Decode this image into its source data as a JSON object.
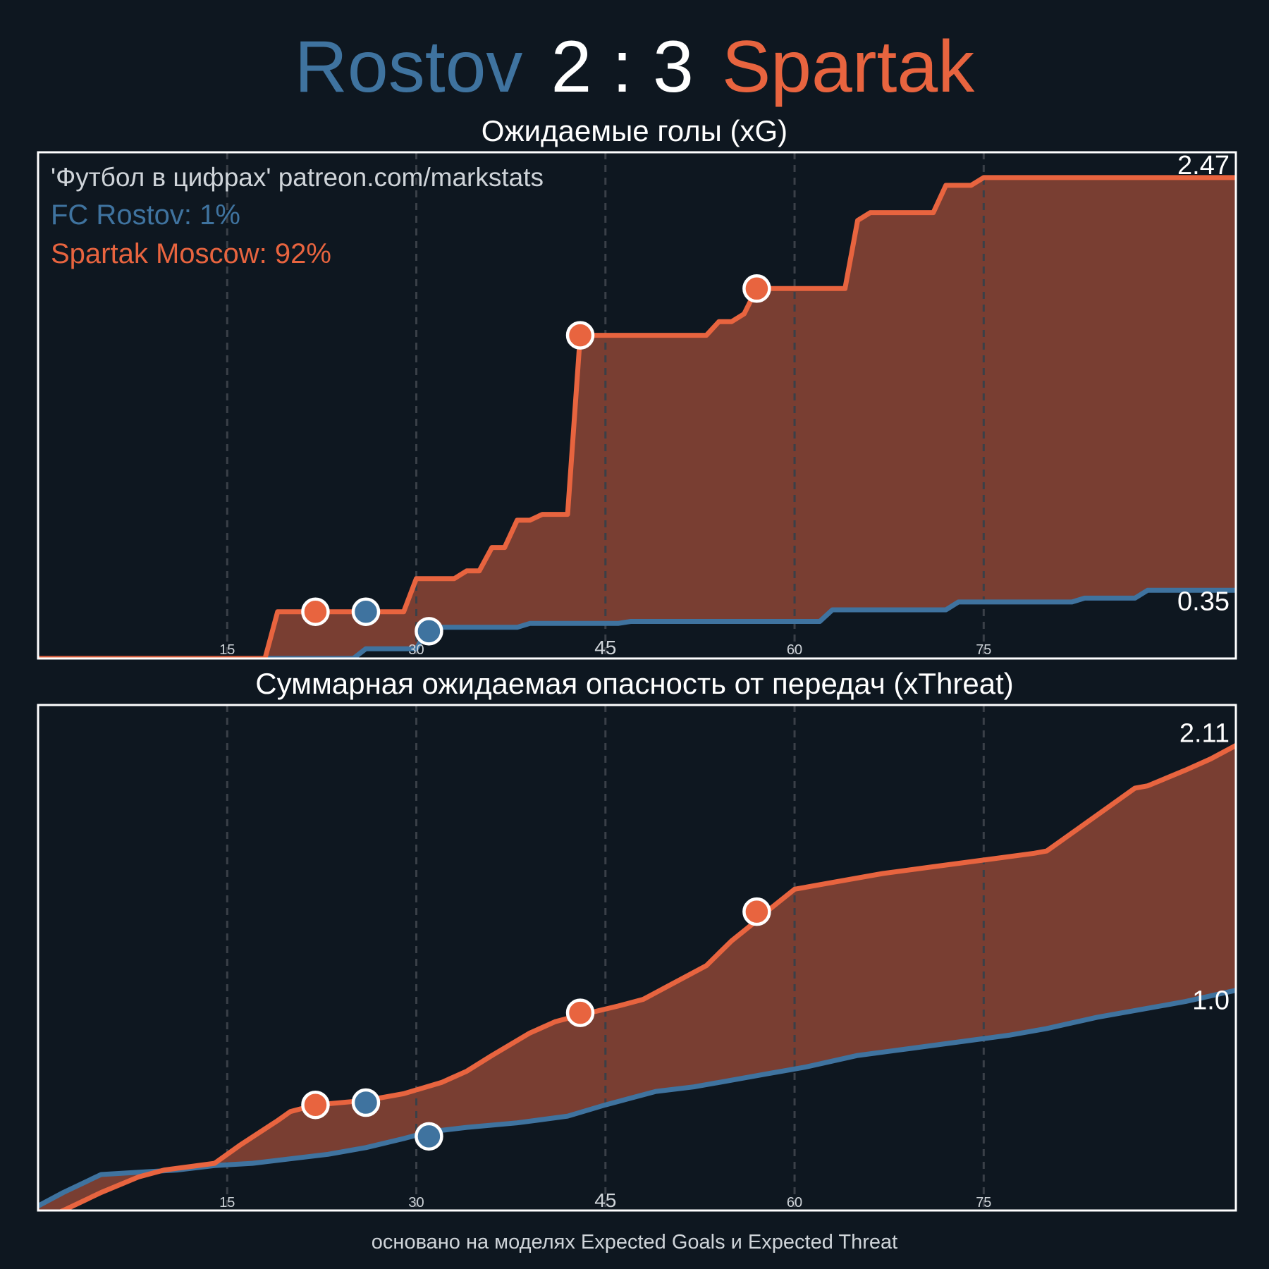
{
  "header": {
    "home": "Rostov",
    "score": "2 : 3",
    "away": "Spartak"
  },
  "footer": "основано на моделях Expected Goals и Expected Threat",
  "colors": {
    "home": "#3f739f",
    "away": "#e8643f",
    "fill": "#793e32",
    "background": "#0e1720",
    "grid": "#3a4048",
    "frame": "#ffffff"
  },
  "chart_data": [
    {
      "type": "line",
      "title": "Ожидаемые голы (xG)",
      "xlabel": "",
      "ylabel": "",
      "xlim": [
        0,
        95
      ],
      "ylim": [
        0,
        2.6
      ],
      "xticks": [
        15,
        30,
        45,
        60,
        75
      ],
      "grid": "vertical dashed at ticks",
      "annotations": [
        "'Футбол в цифрах' patreon.com/markstats",
        "FC Rostov: 1%",
        "Spartak Moscow: 92%"
      ],
      "end_labels": [
        "2.47",
        "0.35"
      ],
      "series": [
        {
          "name": "FC Rostov",
          "color": "#3f739f",
          "points": [
            [
              0,
              0
            ],
            [
              25,
              0
            ],
            [
              26,
              0.05
            ],
            [
              30,
              0.05
            ],
            [
              31,
              0.16
            ],
            [
              38,
              0.16
            ],
            [
              39,
              0.18
            ],
            [
              46,
              0.18
            ],
            [
              47,
              0.19
            ],
            [
              62,
              0.19
            ],
            [
              63,
              0.25
            ],
            [
              72,
              0.25
            ],
            [
              73,
              0.29
            ],
            [
              82,
              0.29
            ],
            [
              83,
              0.31
            ],
            [
              87,
              0.31
            ],
            [
              88,
              0.35
            ],
            [
              95,
              0.35
            ]
          ]
        },
        {
          "name": "Spartak Moscow",
          "color": "#e8643f",
          "points": [
            [
              0,
              0
            ],
            [
              18,
              0
            ],
            [
              19,
              0.24
            ],
            [
              29,
              0.24
            ],
            [
              30,
              0.41
            ],
            [
              33,
              0.41
            ],
            [
              34,
              0.45
            ],
            [
              35,
              0.45
            ],
            [
              36,
              0.57
            ],
            [
              37,
              0.57
            ],
            [
              38,
              0.71
            ],
            [
              39,
              0.71
            ],
            [
              40,
              0.74
            ],
            [
              42,
              0.74
            ],
            [
              43,
              1.66
            ],
            [
              53,
              1.66
            ],
            [
              54,
              1.73
            ],
            [
              55,
              1.73
            ],
            [
              56,
              1.77
            ],
            [
              57,
              1.9
            ],
            [
              64,
              1.9
            ],
            [
              65,
              2.25
            ],
            [
              66,
              2.29
            ],
            [
              71,
              2.29
            ],
            [
              72,
              2.43
            ],
            [
              74,
              2.43
            ],
            [
              75,
              2.47
            ],
            [
              95,
              2.47
            ]
          ]
        }
      ],
      "goal_markers": [
        {
          "team": "Spartak Moscow",
          "minute": 22,
          "value": 0.24
        },
        {
          "team": "FC Rostov",
          "minute": 26,
          "value": 0.24
        },
        {
          "team": "FC Rostov",
          "minute": 31,
          "value": 0.14
        },
        {
          "team": "Spartak Moscow",
          "minute": 43,
          "value": 1.66
        },
        {
          "team": "Spartak Moscow",
          "minute": 57,
          "value": 1.9
        }
      ]
    },
    {
      "type": "line",
      "title": "Суммарная ожидаемая опасность от передач (xThreat)",
      "xlabel": "",
      "ylabel": "",
      "xlim": [
        0,
        95
      ],
      "ylim": [
        0,
        2.25
      ],
      "xticks": [
        15,
        30,
        45,
        60,
        75
      ],
      "grid": "vertical dashed at ticks",
      "end_labels": [
        "2.11",
        "1.0"
      ],
      "series": [
        {
          "name": "FC Rostov",
          "color": "#3f739f",
          "points": [
            [
              0,
              0.02
            ],
            [
              2,
              0.08
            ],
            [
              5,
              0.16
            ],
            [
              8,
              0.17
            ],
            [
              11,
              0.18
            ],
            [
              14,
              0.2
            ],
            [
              17,
              0.21
            ],
            [
              20,
              0.23
            ],
            [
              23,
              0.25
            ],
            [
              26,
              0.28
            ],
            [
              29,
              0.32
            ],
            [
              31,
              0.35
            ],
            [
              34,
              0.37
            ],
            [
              38,
              0.39
            ],
            [
              42,
              0.42
            ],
            [
              45,
              0.47
            ],
            [
              49,
              0.53
            ],
            [
              52,
              0.55
            ],
            [
              55,
              0.58
            ],
            [
              58,
              0.61
            ],
            [
              61,
              0.64
            ],
            [
              65,
              0.69
            ],
            [
              69,
              0.72
            ],
            [
              73,
              0.75
            ],
            [
              77,
              0.78
            ],
            [
              80,
              0.81
            ],
            [
              84,
              0.86
            ],
            [
              88,
              0.9
            ],
            [
              91,
              0.93
            ],
            [
              95,
              0.98
            ]
          ]
        },
        {
          "name": "Spartak Moscow",
          "color": "#e8643f",
          "points": [
            [
              0,
              -0.05
            ],
            [
              2,
              0
            ],
            [
              5,
              0.08
            ],
            [
              8,
              0.15
            ],
            [
              10,
              0.18
            ],
            [
              14,
              0.21
            ],
            [
              16,
              0.29
            ],
            [
              19,
              0.4
            ],
            [
              20,
              0.44
            ],
            [
              22,
              0.47
            ],
            [
              26,
              0.49
            ],
            [
              29,
              0.52
            ],
            [
              32,
              0.57
            ],
            [
              34,
              0.62
            ],
            [
              36,
              0.69
            ],
            [
              39,
              0.79
            ],
            [
              41,
              0.84
            ],
            [
              43,
              0.87
            ],
            [
              46,
              0.91
            ],
            [
              48,
              0.94
            ],
            [
              49,
              0.97
            ],
            [
              51,
              1.03
            ],
            [
              53,
              1.09
            ],
            [
              55,
              1.2
            ],
            [
              57,
              1.29
            ],
            [
              58,
              1.34
            ],
            [
              60,
              1.43
            ],
            [
              63,
              1.46
            ],
            [
              67,
              1.5
            ],
            [
              71,
              1.53
            ],
            [
              75,
              1.56
            ],
            [
              79,
              1.59
            ],
            [
              80,
              1.6
            ],
            [
              83,
              1.72
            ],
            [
              87,
              1.88
            ],
            [
              88,
              1.89
            ],
            [
              91,
              1.96
            ],
            [
              93,
              2.01
            ],
            [
              95,
              2.07
            ]
          ]
        }
      ],
      "goal_markers": [
        {
          "team": "Spartak Moscow",
          "minute": 22,
          "value": 0.47
        },
        {
          "team": "FC Rostov",
          "minute": 26,
          "value": 0.48
        },
        {
          "team": "FC Rostov",
          "minute": 31,
          "value": 0.33
        },
        {
          "team": "Spartak Moscow",
          "minute": 43,
          "value": 0.88
        },
        {
          "team": "Spartak Moscow",
          "minute": 57,
          "value": 1.33
        }
      ]
    }
  ]
}
